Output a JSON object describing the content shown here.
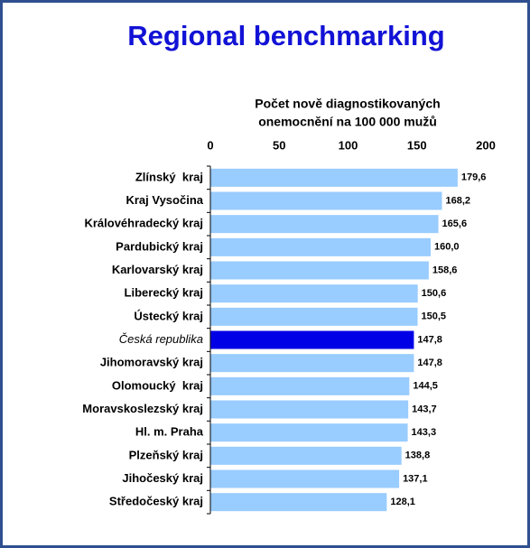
{
  "chart_data": {
    "type": "barh",
    "title": "Regional benchmarking",
    "x_label": [
      "Počet nově diagnostikovaných",
      "onemocnění na 100 000 mužů"
    ],
    "categories": [
      "Zlínský  kraj",
      "Kraj Vysočina",
      "Královéhradecký kraj",
      "Pardubický kraj",
      "Karlovarský kraj",
      "Liberecký kraj",
      "Ústecký kraj",
      "Česká republika",
      "Jihomoravský kraj",
      "Olomoucký  kraj",
      "Moravskoslezský kraj",
      "Hl. m. Praha",
      "Plzeňský kraj",
      "Jihočeský kraj",
      "Středočeský kraj"
    ],
    "values": [
      179.6,
      168.2,
      165.6,
      160.0,
      158.6,
      150.6,
      150.5,
      147.8,
      147.8,
      144.5,
      143.7,
      143.3,
      138.8,
      137.1,
      128.1
    ],
    "value_labels": [
      "179,6",
      "168,2",
      "165,6",
      "160,0",
      "158,6",
      "150,6",
      "150,5",
      "147,8",
      "147,8",
      "144,5",
      "143,7",
      "143,3",
      "138,8",
      "137,1",
      "128,1"
    ],
    "colors": [
      "#99ccff",
      "#99ccff",
      "#99ccff",
      "#99ccff",
      "#99ccff",
      "#99ccff",
      "#99ccff",
      "#0000e6",
      "#99ccff",
      "#99ccff",
      "#99ccff",
      "#99ccff",
      "#99ccff",
      "#99ccff",
      "#99ccff"
    ],
    "highlight_color": "#0000e6",
    "xlim": [
      0,
      200
    ],
    "xticks": [
      0,
      50,
      100,
      150,
      200
    ],
    "grid": false
  }
}
